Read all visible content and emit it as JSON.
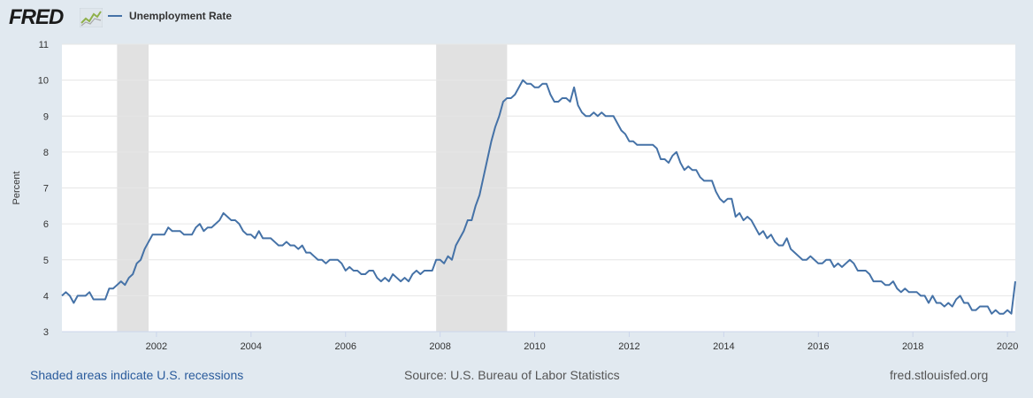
{
  "logo": {
    "text": "FRED"
  },
  "series_name": "Unemployment Rate",
  "colors": {
    "line": "#4572a7",
    "recession": "#e1e1e1",
    "grid": "#e6e6e6",
    "background": "#e1e9f0"
  },
  "footer": {
    "recession_note": "Shaded areas indicate U.S. recessions",
    "source": "Source: U.S. Bureau of Labor Statistics",
    "site": "fred.stlouisfed.org"
  },
  "chart_data": {
    "type": "line",
    "title": "",
    "xlabel": "",
    "ylabel": "Percent",
    "xlim": [
      "2000-01",
      "2020-03"
    ],
    "ylim": [
      3,
      11
    ],
    "yticks": [
      3,
      4,
      5,
      6,
      7,
      8,
      9,
      10,
      11
    ],
    "xticks": [
      "2002",
      "2004",
      "2006",
      "2008",
      "2010",
      "2012",
      "2014",
      "2016",
      "2018",
      "2020"
    ],
    "grid": true,
    "recessions": [
      {
        "start": "2001-03",
        "end": "2001-11"
      },
      {
        "start": "2007-12",
        "end": "2009-06"
      }
    ],
    "series": [
      {
        "name": "Unemployment Rate",
        "start": "2000-01",
        "frequency": "monthly",
        "values": [
          4.0,
          4.1,
          4.0,
          3.8,
          4.0,
          4.0,
          4.0,
          4.1,
          3.9,
          3.9,
          3.9,
          3.9,
          4.2,
          4.2,
          4.3,
          4.4,
          4.3,
          4.5,
          4.6,
          4.9,
          5.0,
          5.3,
          5.5,
          5.7,
          5.7,
          5.7,
          5.7,
          5.9,
          5.8,
          5.8,
          5.8,
          5.7,
          5.7,
          5.7,
          5.9,
          6.0,
          5.8,
          5.9,
          5.9,
          6.0,
          6.1,
          6.3,
          6.2,
          6.1,
          6.1,
          6.0,
          5.8,
          5.7,
          5.7,
          5.6,
          5.8,
          5.6,
          5.6,
          5.6,
          5.5,
          5.4,
          5.4,
          5.5,
          5.4,
          5.4,
          5.3,
          5.4,
          5.2,
          5.2,
          5.1,
          5.0,
          5.0,
          4.9,
          5.0,
          5.0,
          5.0,
          4.9,
          4.7,
          4.8,
          4.7,
          4.7,
          4.6,
          4.6,
          4.7,
          4.7,
          4.5,
          4.4,
          4.5,
          4.4,
          4.6,
          4.5,
          4.4,
          4.5,
          4.4,
          4.6,
          4.7,
          4.6,
          4.7,
          4.7,
          4.7,
          5.0,
          5.0,
          4.9,
          5.1,
          5.0,
          5.4,
          5.6,
          5.8,
          6.1,
          6.1,
          6.5,
          6.8,
          7.3,
          7.8,
          8.3,
          8.7,
          9.0,
          9.4,
          9.5,
          9.5,
          9.6,
          9.8,
          10.0,
          9.9,
          9.9,
          9.8,
          9.8,
          9.9,
          9.9,
          9.6,
          9.4,
          9.4,
          9.5,
          9.5,
          9.4,
          9.8,
          9.3,
          9.1,
          9.0,
          9.0,
          9.1,
          9.0,
          9.1,
          9.0,
          9.0,
          9.0,
          8.8,
          8.6,
          8.5,
          8.3,
          8.3,
          8.2,
          8.2,
          8.2,
          8.2,
          8.2,
          8.1,
          7.8,
          7.8,
          7.7,
          7.9,
          8.0,
          7.7,
          7.5,
          7.6,
          7.5,
          7.5,
          7.3,
          7.2,
          7.2,
          7.2,
          6.9,
          6.7,
          6.6,
          6.7,
          6.7,
          6.2,
          6.3,
          6.1,
          6.2,
          6.1,
          5.9,
          5.7,
          5.8,
          5.6,
          5.7,
          5.5,
          5.4,
          5.4,
          5.6,
          5.3,
          5.2,
          5.1,
          5.0,
          5.0,
          5.1,
          5.0,
          4.9,
          4.9,
          5.0,
          5.0,
          4.8,
          4.9,
          4.8,
          4.9,
          5.0,
          4.9,
          4.7,
          4.7,
          4.7,
          4.6,
          4.4,
          4.4,
          4.4,
          4.3,
          4.3,
          4.4,
          4.2,
          4.1,
          4.2,
          4.1,
          4.1,
          4.1,
          4.0,
          4.0,
          3.8,
          4.0,
          3.8,
          3.8,
          3.7,
          3.8,
          3.7,
          3.9,
          4.0,
          3.8,
          3.8,
          3.6,
          3.6,
          3.7,
          3.7,
          3.7,
          3.5,
          3.6,
          3.5,
          3.5,
          3.6,
          3.5,
          4.4
        ]
      }
    ]
  }
}
